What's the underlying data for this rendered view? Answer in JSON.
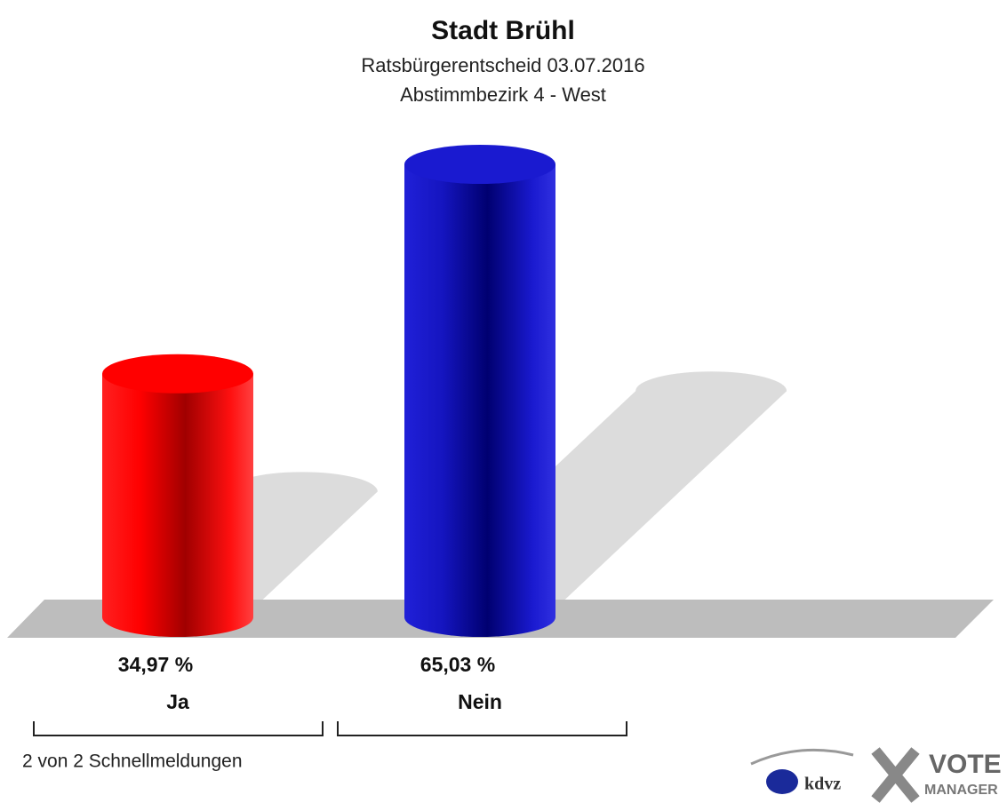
{
  "chart_data": {
    "type": "bar3d",
    "title": "Stadt Brühl",
    "subtitle": [
      "Ratsbürgerentscheid 03.07.2016",
      "Abstimmbezirk 4 - West"
    ],
    "categories": [
      "Ja",
      "Nein"
    ],
    "series": [
      {
        "name": "Ja",
        "color": "#ff0000",
        "values": [
          34.97,
          null
        ]
      },
      {
        "name": "Nein",
        "color": "#1a1ad0",
        "values": [
          null,
          65.03
        ]
      }
    ],
    "values": [
      34.97,
      65.03
    ],
    "colors": [
      "#ff0000",
      "#1a1ad0"
    ],
    "value_labels": [
      "34,97 %",
      "65,03 %"
    ],
    "footer": "2 von 2 Schnellmeldungen",
    "logo": [
      "kdvz",
      "VOTE",
      "MANAGER"
    ]
  }
}
